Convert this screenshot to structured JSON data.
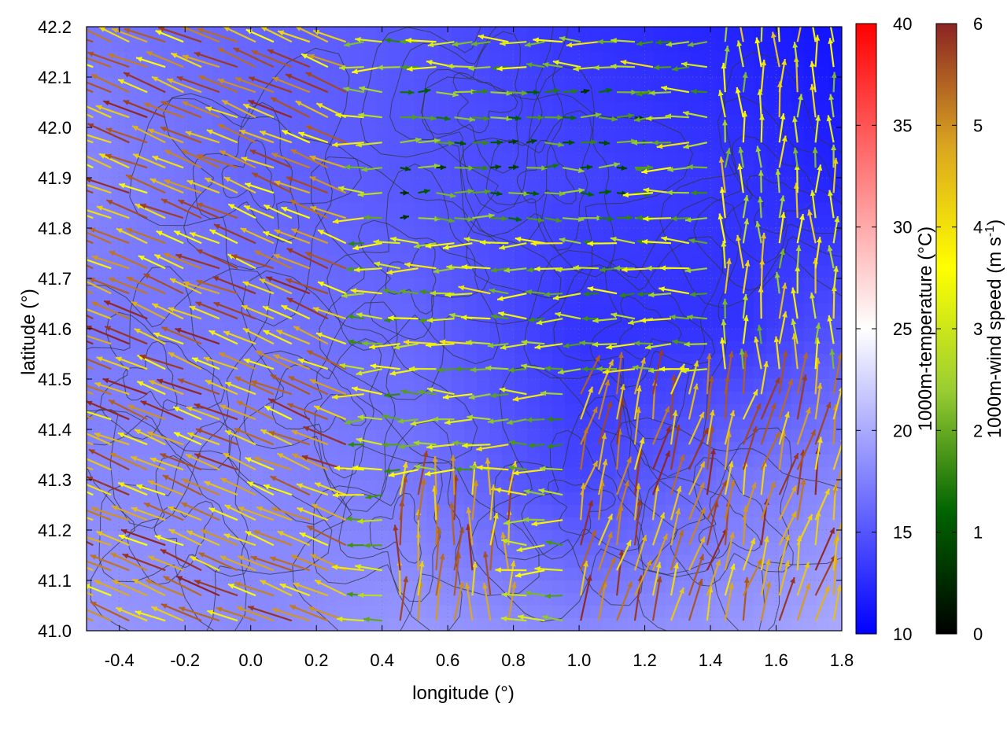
{
  "chart_data": {
    "type": "heatmap",
    "title": "",
    "xlabel": "longitude (°)",
    "ylabel": "latitude (°)",
    "xlim": [
      -0.5,
      1.8
    ],
    "ylim": [
      41.0,
      42.2
    ],
    "xticks": [
      "-0.4",
      "-0.2",
      "0.0",
      "0.2",
      "0.4",
      "0.6",
      "0.8",
      "1.0",
      "1.2",
      "1.4",
      "1.6",
      "1.8"
    ],
    "yticks": [
      "41.0",
      "41.1",
      "41.2",
      "41.3",
      "41.4",
      "41.5",
      "41.6",
      "41.7",
      "41.8",
      "41.9",
      "42.0",
      "42.1",
      "42.2"
    ],
    "grid": true,
    "field": {
      "variable": "1000m-temperature",
      "units": "°C",
      "range": [
        10,
        40
      ],
      "colorbar_ticks": [
        "10",
        "15",
        "20",
        "25",
        "30",
        "35",
        "40"
      ],
      "colorbar_label": "1000m-temperature (°C)",
      "colors": [
        "#0000ff",
        "#ffffff",
        "#ff0000"
      ],
      "approx_values_grid": {
        "lon": [
          -0.5,
          0.0,
          0.5,
          1.0,
          1.5,
          1.8
        ],
        "lat": [
          41.0,
          41.3,
          41.6,
          41.9,
          42.2
        ],
        "temperature": [
          [
            19,
            18,
            19,
            18,
            19,
            20
          ],
          [
            18,
            18,
            17,
            14,
            17,
            18
          ],
          [
            17,
            17,
            16,
            13,
            13,
            15
          ],
          [
            18,
            16,
            15,
            14,
            13,
            12
          ],
          [
            17,
            16,
            15,
            13,
            12,
            11
          ]
        ]
      }
    },
    "vectors": {
      "variable": "1000m-wind speed",
      "units": "m s-1",
      "range": [
        0,
        6
      ],
      "colorbar_ticks": [
        "0",
        "1",
        "2",
        "3",
        "4",
        "5",
        "6"
      ],
      "colorbar_label_main": "1000m-wind speed (m s",
      "colorbar_label_sup": "-1",
      "colorbar_label_end": ")",
      "colors": [
        "#000000",
        "#006400",
        "#9acd32",
        "#ffff00",
        "#daa520",
        "#8b2323"
      ],
      "regions": [
        {
          "name": "west",
          "lon": [
            -0.5,
            0.3
          ],
          "lat": [
            41.0,
            42.2
          ],
          "direction": "toward west-northwest",
          "speed_range": [
            3.5,
            6
          ]
        },
        {
          "name": "center",
          "lon": [
            0.3,
            1.0
          ],
          "lat": [
            41.3,
            42.2
          ],
          "direction": "toward west",
          "speed_range": [
            1.5,
            4
          ]
        },
        {
          "name": "north-center",
          "lon": [
            0.4,
            1.2
          ],
          "lat": [
            41.8,
            42.1
          ],
          "direction": "toward east",
          "speed_range": [
            0.5,
            2.5
          ]
        },
        {
          "name": "south-center",
          "lon": [
            0.4,
            0.8
          ],
          "lat": [
            41.0,
            41.3
          ],
          "direction": "toward north",
          "speed_range": [
            4,
            6
          ]
        },
        {
          "name": "southeast",
          "lon": [
            1.0,
            1.8
          ],
          "lat": [
            41.0,
            41.5
          ],
          "direction": "toward north-northeast",
          "speed_range": [
            4,
            6
          ]
        },
        {
          "name": "east",
          "lon": [
            1.4,
            1.8
          ],
          "lat": [
            41.5,
            42.2
          ],
          "direction": "toward north",
          "speed_range": [
            2,
            4.5
          ]
        }
      ]
    },
    "contours": {
      "color": "#333333",
      "description": "terrain elevation contours (unlabeled)"
    }
  }
}
